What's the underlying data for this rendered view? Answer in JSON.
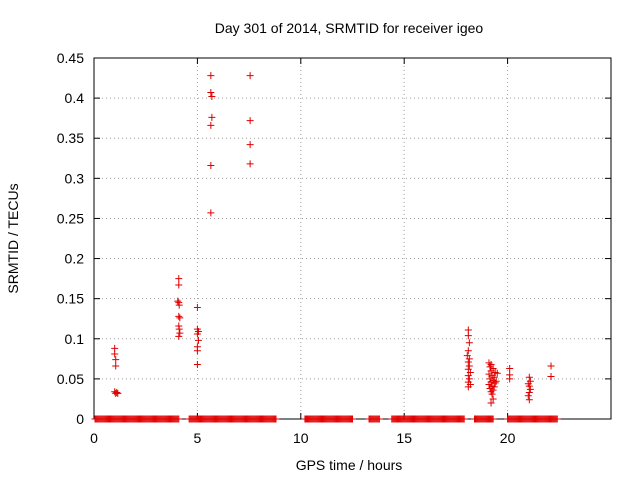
{
  "chart_data": {
    "type": "scatter",
    "title": "Day 301 of 2014, SRMTID for receiver igeo",
    "xlabel": "GPS time / hours",
    "ylabel": "SRMTID / TECUs",
    "xlim": [
      0,
      25
    ],
    "ylim": [
      0,
      0.45
    ],
    "xticks": [
      0,
      5,
      10,
      15,
      20
    ],
    "xtick_labels": [
      "0",
      "5",
      "10",
      "15",
      "20"
    ],
    "yticks": [
      0,
      0.05,
      0.1,
      0.15,
      0.2,
      0.25,
      0.3,
      0.35,
      0.4,
      0.45
    ],
    "ytick_labels": [
      "0",
      "0.05",
      "0.1",
      "0.15",
      "0.2",
      "0.25",
      "0.3",
      "0.35",
      "0.4",
      "0.45"
    ],
    "grid": true,
    "marker": "+",
    "marker_color": "#e00000",
    "series": [
      {
        "name": "SRMTID",
        "zero_segments": [
          [
            0.05,
            4.1
          ],
          [
            4.6,
            8.8
          ],
          [
            10.2,
            12.5
          ],
          [
            13.3,
            13.8
          ],
          [
            14.4,
            17.9
          ],
          [
            18.4,
            19.3
          ],
          [
            20.0,
            22.4
          ]
        ],
        "zero_step": 0.05,
        "points": [
          [
            1.0,
            0.088
          ],
          [
            1.0,
            0.081
          ],
          [
            1.05,
            0.074
          ],
          [
            1.05,
            0.066
          ],
          [
            1.0,
            0.034
          ],
          [
            1.05,
            0.032
          ],
          [
            1.1,
            0.033
          ],
          [
            1.15,
            0.032
          ],
          [
            4.1,
            0.175
          ],
          [
            4.1,
            0.167
          ],
          [
            4.05,
            0.147
          ],
          [
            4.1,
            0.145
          ],
          [
            4.12,
            0.142
          ],
          [
            4.1,
            0.128
          ],
          [
            4.15,
            0.126
          ],
          [
            4.1,
            0.116
          ],
          [
            4.12,
            0.112
          ],
          [
            4.15,
            0.107
          ],
          [
            4.1,
            0.103
          ],
          [
            5.0,
            0.139
          ],
          [
            5.0,
            0.112
          ],
          [
            5.05,
            0.109
          ],
          [
            5.0,
            0.106
          ],
          [
            5.05,
            0.098
          ],
          [
            5.0,
            0.09
          ],
          [
            5.0,
            0.085
          ],
          [
            5.0,
            0.068
          ],
          [
            5.65,
            0.428
          ],
          [
            5.65,
            0.407
          ],
          [
            5.7,
            0.402
          ],
          [
            5.7,
            0.376
          ],
          [
            5.65,
            0.366
          ],
          [
            5.65,
            0.316
          ],
          [
            5.65,
            0.257
          ],
          [
            7.55,
            0.428
          ],
          [
            7.55,
            0.372
          ],
          [
            7.55,
            0.342
          ],
          [
            7.55,
            0.318
          ],
          [
            18.1,
            0.111
          ],
          [
            18.1,
            0.104
          ],
          [
            18.15,
            0.095
          ],
          [
            18.1,
            0.085
          ],
          [
            18.05,
            0.079
          ],
          [
            18.15,
            0.075
          ],
          [
            18.1,
            0.071
          ],
          [
            18.15,
            0.066
          ],
          [
            18.1,
            0.062
          ],
          [
            18.2,
            0.058
          ],
          [
            18.1,
            0.054
          ],
          [
            18.15,
            0.05
          ],
          [
            18.1,
            0.046
          ],
          [
            18.2,
            0.043
          ],
          [
            18.1,
            0.04
          ],
          [
            19.1,
            0.07
          ],
          [
            19.2,
            0.068
          ],
          [
            19.15,
            0.065
          ],
          [
            19.3,
            0.063
          ],
          [
            19.2,
            0.06
          ],
          [
            19.4,
            0.058
          ],
          [
            19.1,
            0.056
          ],
          [
            19.25,
            0.054
          ],
          [
            19.35,
            0.052
          ],
          [
            19.15,
            0.05
          ],
          [
            19.3,
            0.048
          ],
          [
            19.2,
            0.046
          ],
          [
            19.4,
            0.045
          ],
          [
            19.1,
            0.043
          ],
          [
            19.25,
            0.041
          ],
          [
            19.35,
            0.04
          ],
          [
            19.15,
            0.038
          ],
          [
            19.3,
            0.036
          ],
          [
            19.2,
            0.034
          ],
          [
            19.25,
            0.031
          ],
          [
            19.3,
            0.025
          ],
          [
            19.2,
            0.02
          ],
          [
            19.5,
            0.057
          ],
          [
            19.45,
            0.047
          ],
          [
            20.1,
            0.063
          ],
          [
            20.1,
            0.055
          ],
          [
            20.1,
            0.05
          ],
          [
            21.05,
            0.052
          ],
          [
            21.1,
            0.047
          ],
          [
            21.0,
            0.044
          ],
          [
            21.05,
            0.041
          ],
          [
            21.1,
            0.037
          ],
          [
            21.05,
            0.033
          ],
          [
            21.0,
            0.029
          ],
          [
            21.05,
            0.024
          ],
          [
            22.1,
            0.066
          ],
          [
            22.1,
            0.053
          ]
        ]
      }
    ]
  }
}
